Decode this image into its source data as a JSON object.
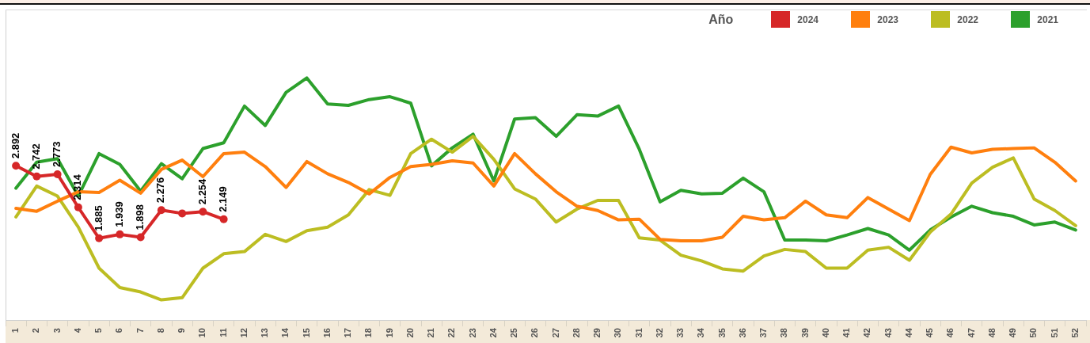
{
  "chart_data": {
    "type": "line",
    "legend_title": "Año",
    "legend": "top right",
    "tick_labels": "x",
    "grid": false,
    "marker": "none",
    "line_style": "solid",
    "ylim": [
      0.75,
      5.06
    ],
    "categories": [
      "1",
      "2",
      "3",
      "4",
      "5",
      "6",
      "7",
      "8",
      "9",
      "10",
      "11",
      "12",
      "13",
      "14",
      "15",
      "16",
      "17",
      "18",
      "19",
      "20",
      "21",
      "22",
      "23",
      "24",
      "25",
      "26",
      "27",
      "28",
      "29",
      "30",
      "31",
      "32",
      "33",
      "34",
      "35",
      "36",
      "37",
      "38",
      "39",
      "40",
      "41",
      "42",
      "43",
      "44",
      "45",
      "46",
      "47",
      "48",
      "49",
      "50",
      "51",
      "52"
    ],
    "series": [
      {
        "name": "2024",
        "color": "#d62728",
        "marker": "circle",
        "values": [
          2.892,
          2.742,
          2.773,
          2.314,
          1.885,
          1.939,
          1.898,
          2.276,
          2.23,
          2.254,
          2.149,
          null,
          null,
          null,
          null,
          null,
          null,
          null,
          null,
          null,
          null,
          null,
          null,
          null,
          null,
          null,
          null,
          null,
          null,
          null,
          null,
          null,
          null,
          null,
          null,
          null,
          null,
          null,
          null,
          null,
          null,
          null,
          null,
          null,
          null,
          null,
          null,
          null,
          null,
          null,
          null,
          null
        ],
        "value_labels": [
          "2.892",
          "2.742",
          "2.773",
          "2.314",
          "1.885",
          "1.939",
          "1.898",
          "2.276",
          null,
          "2.254",
          "2.149",
          null,
          null,
          null,
          null,
          null,
          null,
          null,
          null,
          null,
          null,
          null,
          null,
          null,
          null,
          null,
          null,
          null,
          null,
          null,
          null,
          null,
          null,
          null,
          null,
          null,
          null,
          null,
          null,
          null,
          null,
          null,
          null,
          null,
          null,
          null,
          null,
          null,
          null,
          null,
          null,
          null
        ]
      },
      {
        "name": "2023",
        "color": "#ff7f0e",
        "values": [
          2.3,
          2.26,
          2.4,
          2.53,
          2.52,
          2.69,
          2.51,
          2.84,
          2.97,
          2.74,
          3.06,
          3.08,
          2.88,
          2.59,
          2.95,
          2.78,
          2.66,
          2.5,
          2.73,
          2.88,
          2.91,
          2.96,
          2.93,
          2.61,
          3.06,
          2.78,
          2.53,
          2.33,
          2.27,
          2.14,
          2.15,
          1.87,
          1.85,
          1.85,
          1.9,
          2.19,
          2.14,
          2.17,
          2.4,
          2.21,
          2.17,
          2.45,
          2.29,
          2.13,
          2.77,
          3.15,
          3.07,
          3.12,
          3.13,
          3.14,
          2.94,
          2.68
        ]
      },
      {
        "name": "2022",
        "color": "#bcbd22",
        "values": [
          2.18,
          2.61,
          2.47,
          2.04,
          1.47,
          1.2,
          1.14,
          1.03,
          1.06,
          1.47,
          1.67,
          1.7,
          1.94,
          1.84,
          1.99,
          2.04,
          2.21,
          2.56,
          2.48,
          3.06,
          3.26,
          3.08,
          3.3,
          2.98,
          2.57,
          2.43,
          2.11,
          2.29,
          2.41,
          2.41,
          1.89,
          1.86,
          1.65,
          1.57,
          1.46,
          1.43,
          1.64,
          1.73,
          1.7,
          1.47,
          1.47,
          1.72,
          1.76,
          1.58,
          1.97,
          2.22,
          2.65,
          2.87,
          3.0,
          2.43,
          2.27,
          2.06
        ]
      },
      {
        "name": "2021",
        "color": "#2ca02c",
        "values": [
          2.58,
          2.94,
          2.99,
          2.47,
          3.06,
          2.91,
          2.54,
          2.92,
          2.71,
          3.13,
          3.21,
          3.72,
          3.45,
          3.91,
          4.11,
          3.75,
          3.73,
          3.81,
          3.85,
          3.76,
          2.89,
          3.14,
          3.33,
          2.68,
          3.54,
          3.56,
          3.3,
          3.6,
          3.58,
          3.72,
          3.12,
          2.39,
          2.55,
          2.5,
          2.51,
          2.72,
          2.53,
          1.86,
          1.86,
          1.85,
          1.93,
          2.02,
          1.93,
          1.72,
          2.0,
          2.18,
          2.33,
          2.24,
          2.19,
          2.07,
          2.11,
          2.0
        ]
      }
    ]
  }
}
